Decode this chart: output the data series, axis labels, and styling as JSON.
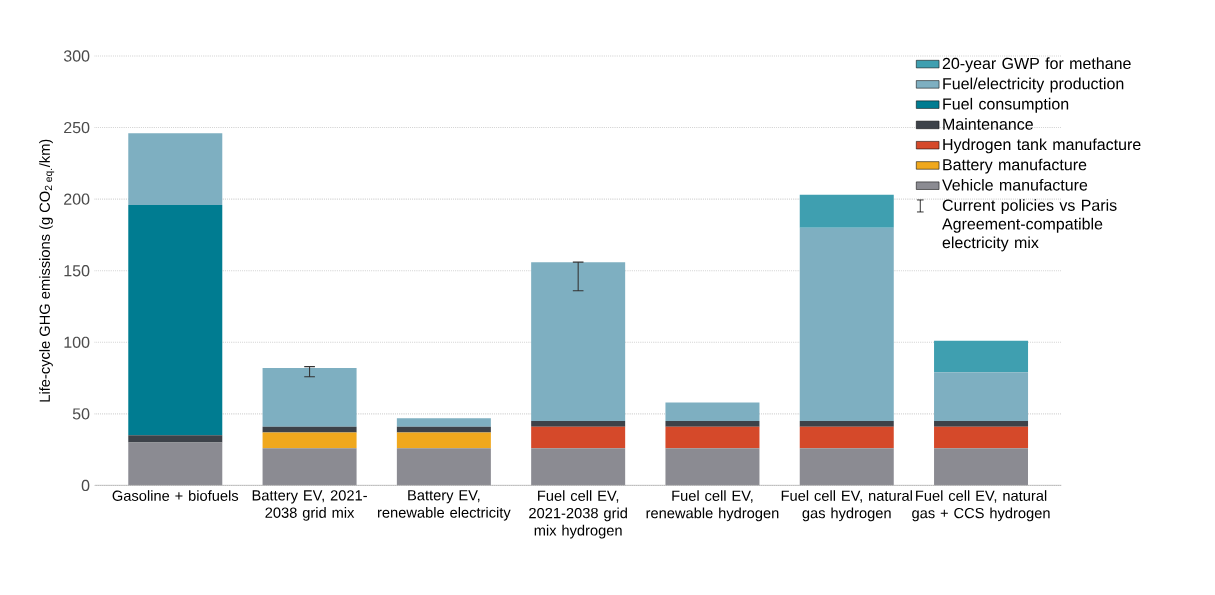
{
  "chart_data": {
    "type": "bar",
    "stacked": true,
    "ylabel": "Life-cycle GHG emissions (g CO$_{2 eq.}$/km)",
    "categories": [
      "Gasoline + biofuels",
      "Battery EV, 2021-2038 grid mix",
      "Battery EV, renewable electricity",
      "Fuel cell EV, 2021-2038 grid mix hydrogen",
      "Fuel cell EV, renewable hydrogen",
      "Fuel cell EV, natural gas hydrogen",
      "Fuel cell EV, natural gas + CCS hydrogen"
    ],
    "series": [
      {
        "name": "Vehicle manufacture",
        "color": "#8b8b92",
        "values": [
          30,
          26,
          26,
          26,
          26,
          26,
          26
        ]
      },
      {
        "name": "Battery manufacture",
        "color": "#f0a81d",
        "values": [
          0,
          11,
          11,
          0,
          0,
          0,
          0
        ]
      },
      {
        "name": "Hydrogen tank manufacture",
        "color": "#d5492a",
        "values": [
          0,
          0,
          0,
          15,
          15,
          15,
          15
        ]
      },
      {
        "name": "Maintenance",
        "color": "#3d4249",
        "values": [
          5,
          4,
          4,
          4,
          4,
          4,
          4
        ]
      },
      {
        "name": "Fuel consumption",
        "color": "#007c91",
        "values": [
          161,
          0,
          0,
          0,
          0,
          0,
          0
        ]
      },
      {
        "name": "Fuel/electricity production",
        "color": "#7eafc1",
        "values": [
          50,
          41,
          6,
          111,
          13,
          135,
          34
        ],
        "errors": [
          null,
          [
            76,
            83
          ],
          null,
          [
            136,
            156
          ],
          null,
          null,
          null
        ]
      },
      {
        "name": "20-year GWP for methane",
        "color": "#3f9fb0",
        "values": [
          0,
          0,
          0,
          0,
          0,
          23,
          22
        ]
      }
    ],
    "annotations": [
      "Current policies vs Paris Agreement-compatible electricity mix"
    ],
    "ylim": [
      0,
      300
    ],
    "yticks": [
      0,
      50,
      100,
      150,
      200,
      250,
      300
    ],
    "grid": "y",
    "legend": "top right"
  }
}
